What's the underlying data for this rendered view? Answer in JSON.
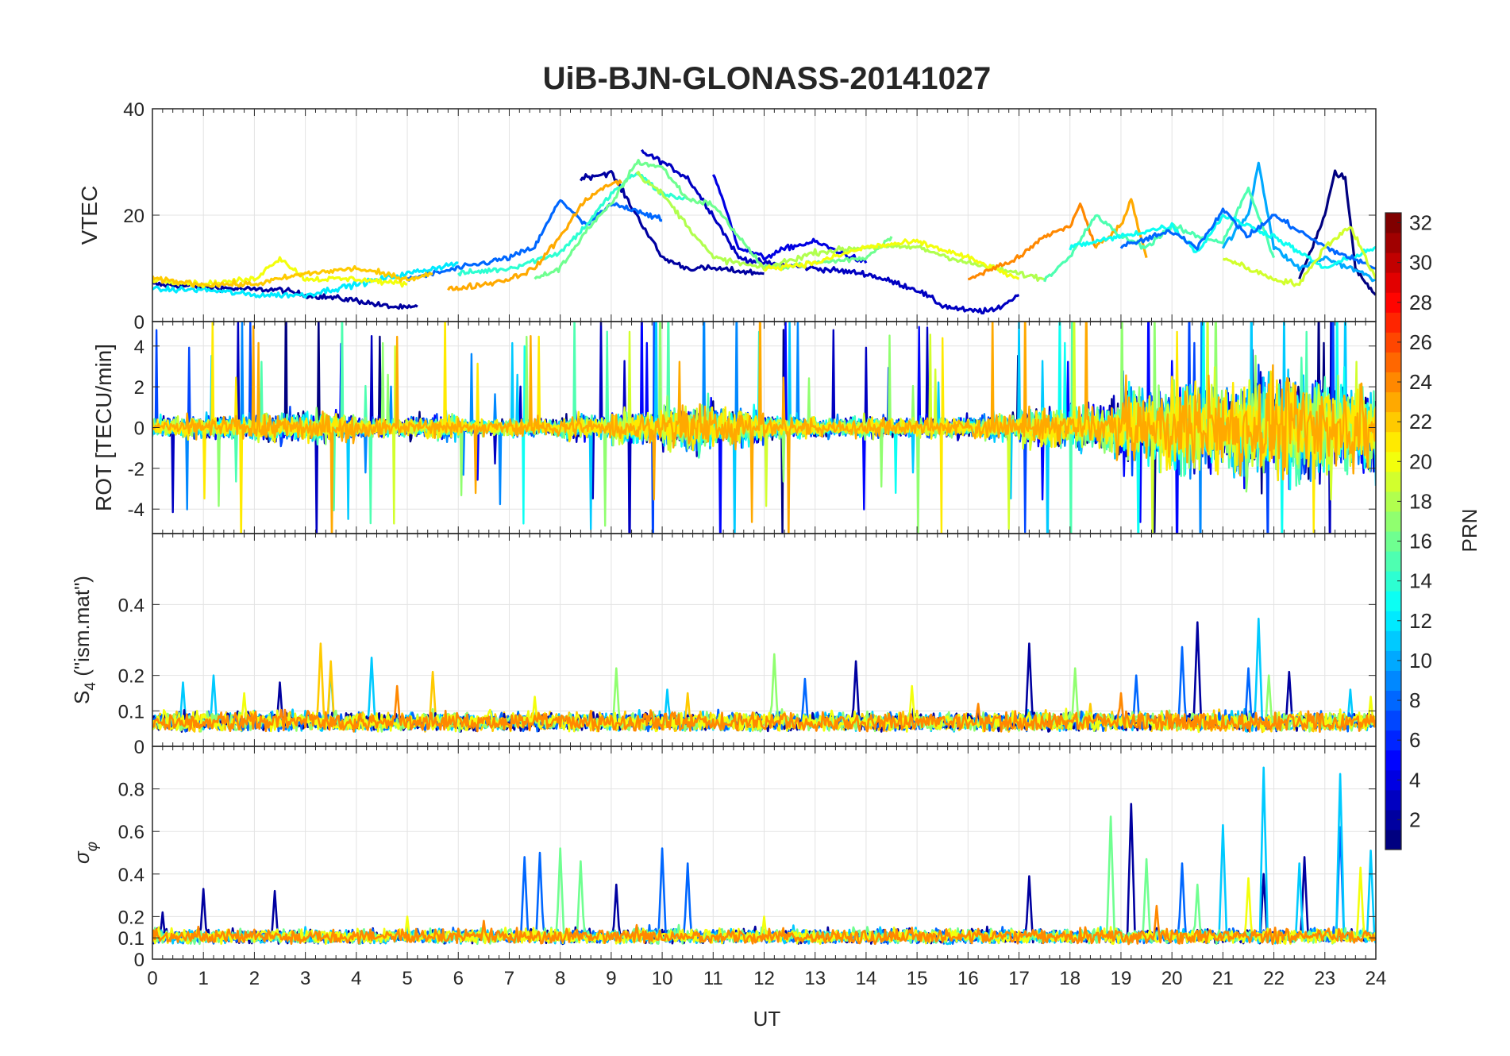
{
  "title": "UiB-BJN-GLONASS-20141027",
  "chart_data": [
    {
      "type": "line",
      "panel": "vtec",
      "ylabel": "VTEC",
      "ylim": [
        0,
        40
      ],
      "yticks": [
        0,
        20,
        40
      ],
      "grid": true,
      "series": [
        {
          "prn": 2,
          "x": [
            0,
            1,
            2,
            2.5,
            3,
            4,
            4.5,
            5,
            5.2
          ],
          "values": [
            7,
            6.5,
            6,
            6,
            5,
            4,
            3,
            2.5,
            2.8
          ]
        },
        {
          "prn": 3,
          "x": [
            9.6,
            10,
            10.5,
            11,
            11.5,
            12,
            13,
            14,
            15,
            15.5,
            16,
            16.5,
            17
          ],
          "values": [
            32,
            30,
            27,
            20,
            12,
            11,
            10,
            9,
            6,
            3,
            2,
            2,
            5
          ]
        },
        {
          "prn": 2,
          "x": [
            8.4,
            9,
            9.5,
            10,
            10.5,
            11,
            12
          ],
          "values": [
            27,
            28,
            20,
            12,
            10,
            10,
            9
          ]
        },
        {
          "prn": 4,
          "x": [
            11,
            11.5,
            12,
            12.5,
            13,
            14
          ],
          "values": [
            28,
            14,
            12,
            14,
            15,
            11
          ]
        },
        {
          "prn": 8,
          "x": [
            5,
            6,
            7,
            7.5,
            8,
            8.5,
            9,
            9.5,
            10
          ],
          "values": [
            8,
            10,
            12,
            14,
            23,
            18,
            22,
            21,
            19
          ]
        },
        {
          "prn": 1,
          "x": [
            22.5,
            23,
            23.2,
            23.4,
            23.6,
            24
          ],
          "values": [
            8,
            20,
            28,
            27,
            10,
            5
          ]
        },
        {
          "prn": 10,
          "x": [
            21,
            21.5,
            21.7,
            22,
            22.5,
            23,
            24
          ],
          "values": [
            14,
            20,
            30,
            14,
            10,
            12,
            8
          ]
        },
        {
          "prn": 12,
          "x": [
            0,
            1,
            2,
            3,
            4,
            5,
            6
          ],
          "values": [
            6,
            6,
            5,
            5,
            7,
            9,
            11
          ]
        },
        {
          "prn": 14,
          "x": [
            6,
            7,
            8,
            8.5,
            9,
            9.5,
            10,
            10.5
          ],
          "values": [
            9,
            10,
            13,
            18,
            24,
            28,
            24,
            23
          ]
        },
        {
          "prn": 16,
          "x": [
            7.5,
            8,
            8.5,
            9,
            9.5,
            10,
            10.5,
            11,
            12,
            13,
            14,
            14.5
          ],
          "values": [
            8,
            10,
            17,
            22,
            30,
            29,
            23,
            22,
            10,
            11,
            12,
            16
          ]
        },
        {
          "prn": 18,
          "x": [
            9.5,
            10,
            11,
            12,
            13,
            14,
            15,
            16,
            17,
            17.5
          ],
          "values": [
            28,
            24,
            12,
            10,
            13,
            14,
            14,
            11,
            9,
            8
          ]
        },
        {
          "prn": 20,
          "x": [
            0,
            1,
            2,
            2.5,
            3,
            4,
            5
          ],
          "values": [
            8,
            7,
            8,
            12,
            8,
            8,
            7
          ]
        },
        {
          "prn": 20,
          "x": [
            12,
            13,
            14,
            15,
            16,
            17
          ],
          "values": [
            10,
            11,
            14,
            15,
            12,
            8
          ]
        },
        {
          "prn": 22,
          "x": [
            0,
            1,
            2,
            3,
            4,
            5,
            5.5
          ],
          "values": [
            8,
            7,
            7,
            9,
            10,
            8,
            9
          ]
        },
        {
          "prn": 23,
          "x": [
            5.8,
            6.5,
            7,
            7.5,
            8,
            8.5,
            9,
            9.2
          ],
          "values": [
            6,
            7,
            8,
            10,
            16,
            23,
            26,
            26
          ]
        },
        {
          "prn": 24,
          "x": [
            16,
            16.5,
            17,
            17.5,
            18,
            18.2,
            18.5
          ],
          "values": [
            8,
            10,
            12,
            16,
            18,
            22,
            14
          ]
        },
        {
          "prn": 23,
          "x": [
            18.5,
            19,
            19.2,
            19.5
          ],
          "values": [
            14,
            18,
            23,
            12
          ]
        },
        {
          "prn": 15,
          "x": [
            17.5,
            18,
            18.5,
            19,
            19.5,
            20,
            20.5,
            21,
            21.5,
            22
          ],
          "values": [
            8,
            12,
            20,
            16,
            14,
            18,
            16,
            15,
            25,
            12
          ]
        },
        {
          "prn": 13,
          "x": [
            18,
            19,
            20,
            20.5,
            21,
            22,
            23,
            24
          ],
          "values": [
            14,
            16,
            18,
            13,
            20,
            16,
            10,
            14
          ]
        },
        {
          "prn": 8,
          "x": [
            19,
            20,
            20.5,
            21,
            21.5,
            22,
            23,
            24
          ],
          "values": [
            14,
            17,
            14,
            21,
            16,
            20,
            14,
            10
          ]
        },
        {
          "prn": 19,
          "x": [
            21,
            22,
            22.5,
            23,
            23.5,
            24
          ],
          "values": [
            12,
            8,
            7,
            14,
            18,
            8
          ]
        }
      ]
    },
    {
      "type": "line",
      "panel": "rot",
      "ylabel": "ROT [TECU/min]",
      "ylim": [
        -5.2,
        5.2
      ],
      "yticks": [
        -4,
        -2,
        0,
        2,
        4
      ],
      "grid": true,
      "activity_by_hour": [
        1,
        1.2,
        1.6,
        1.4,
        1,
        1.2,
        0.8,
        1,
        1.2,
        1.6,
        2.6,
        1.8,
        1.2,
        1,
        1,
        1.1,
        1.2,
        2,
        2.8,
        4,
        5,
        5.5,
        5.5,
        5
      ],
      "series_prns": [
        1,
        3,
        5,
        7,
        9,
        11,
        13,
        15,
        17,
        19,
        21,
        23
      ]
    },
    {
      "type": "line",
      "panel": "s4",
      "ylabel": "S4 (\"ism.mat\")",
      "ylim": [
        0,
        0.6
      ],
      "yticks": [
        0,
        0.1,
        0.2,
        0.4
      ],
      "ytick_labels": [
        "0",
        "0.1",
        "0.2",
        "0.4"
      ],
      "grid": true,
      "series": [
        {
          "prn": 11,
          "peaks": [
            [
              0.6,
              0.18
            ],
            [
              1.2,
              0.2
            ],
            [
              3.5,
              0.22
            ],
            [
              4.3,
              0.25
            ],
            [
              10.1,
              0.16
            ],
            [
              21.7,
              0.36
            ],
            [
              23.5,
              0.16
            ]
          ]
        },
        {
          "prn": 22,
          "peaks": [
            [
              3.3,
              0.29
            ],
            [
              3.5,
              0.24
            ],
            [
              5.5,
              0.21
            ],
            [
              10.5,
              0.15
            ],
            [
              18.4,
              0.12
            ]
          ]
        },
        {
          "prn": 2,
          "peaks": [
            [
              2.5,
              0.18
            ],
            [
              13.8,
              0.24
            ],
            [
              17.2,
              0.29
            ],
            [
              20.5,
              0.35
            ],
            [
              22.3,
              0.21
            ]
          ]
        },
        {
          "prn": 8,
          "peaks": [
            [
              12.8,
              0.19
            ],
            [
              19.3,
              0.2
            ],
            [
              20.2,
              0.28
            ],
            [
              21.5,
              0.22
            ]
          ]
        },
        {
          "prn": 17,
          "peaks": [
            [
              9.1,
              0.22
            ],
            [
              12.2,
              0.26
            ],
            [
              18.1,
              0.22
            ],
            [
              21.9,
              0.2
            ]
          ]
        },
        {
          "prn": 20,
          "peaks": [
            [
              1.8,
              0.15
            ],
            [
              7.5,
              0.14
            ],
            [
              14.9,
              0.17
            ],
            [
              23.9,
              0.14
            ]
          ]
        },
        {
          "prn": 24,
          "peaks": [
            [
              4.8,
              0.17
            ],
            [
              8.6,
              0.1
            ],
            [
              16.2,
              0.12
            ],
            [
              19.0,
              0.15
            ]
          ]
        }
      ]
    },
    {
      "type": "line",
      "panel": "sigma_phi",
      "ylabel": "σφ",
      "xlabel": "UT",
      "xlim": [
        0,
        24
      ],
      "xticks": [
        0,
        1,
        2,
        3,
        4,
        5,
        6,
        7,
        8,
        9,
        10,
        11,
        12,
        13,
        14,
        15,
        16,
        17,
        18,
        19,
        20,
        21,
        22,
        23,
        24
      ],
      "ylim": [
        0,
        1.0
      ],
      "yticks": [
        0,
        0.1,
        0.2,
        0.4,
        0.6,
        0.8
      ],
      "ytick_labels": [
        "0",
        "0.1",
        "0.2",
        "0.4",
        "0.6",
        "0.8"
      ],
      "grid": true,
      "series": [
        {
          "prn": 2,
          "peaks": [
            [
              0.2,
              0.22
            ],
            [
              1.0,
              0.33
            ],
            [
              2.4,
              0.32
            ],
            [
              9.1,
              0.35
            ],
            [
              17.2,
              0.39
            ],
            [
              19.2,
              0.73
            ],
            [
              21.8,
              0.4
            ],
            [
              22.6,
              0.48
            ]
          ]
        },
        {
          "prn": 8,
          "peaks": [
            [
              7.3,
              0.48
            ],
            [
              7.6,
              0.5
            ],
            [
              10.0,
              0.52
            ],
            [
              10.5,
              0.45
            ],
            [
              20.2,
              0.45
            ],
            [
              23.3,
              0.62
            ]
          ]
        },
        {
          "prn": 11,
          "peaks": [
            [
              21.0,
              0.63
            ],
            [
              21.8,
              0.9
            ],
            [
              23.3,
              0.87
            ],
            [
              23.9,
              0.51
            ],
            [
              22.5,
              0.45
            ]
          ]
        },
        {
          "prn": 16,
          "peaks": [
            [
              8.0,
              0.52
            ],
            [
              8.4,
              0.46
            ],
            [
              18.8,
              0.67
            ],
            [
              19.5,
              0.47
            ],
            [
              20.5,
              0.35
            ]
          ]
        },
        {
          "prn": 20,
          "peaks": [
            [
              5.0,
              0.2
            ],
            [
              12.0,
              0.2
            ],
            [
              21.5,
              0.38
            ],
            [
              23.7,
              0.43
            ]
          ]
        },
        {
          "prn": 24,
          "peaks": [
            [
              6.5,
              0.18
            ],
            [
              9.5,
              0.16
            ],
            [
              19.7,
              0.25
            ]
          ]
        }
      ]
    }
  ],
  "colorbar": {
    "label": "PRN",
    "min": 1,
    "max": 32,
    "ticks": [
      2,
      4,
      6,
      8,
      10,
      12,
      14,
      16,
      18,
      20,
      22,
      24,
      26,
      28,
      30,
      32
    ],
    "colormap": "jet"
  }
}
